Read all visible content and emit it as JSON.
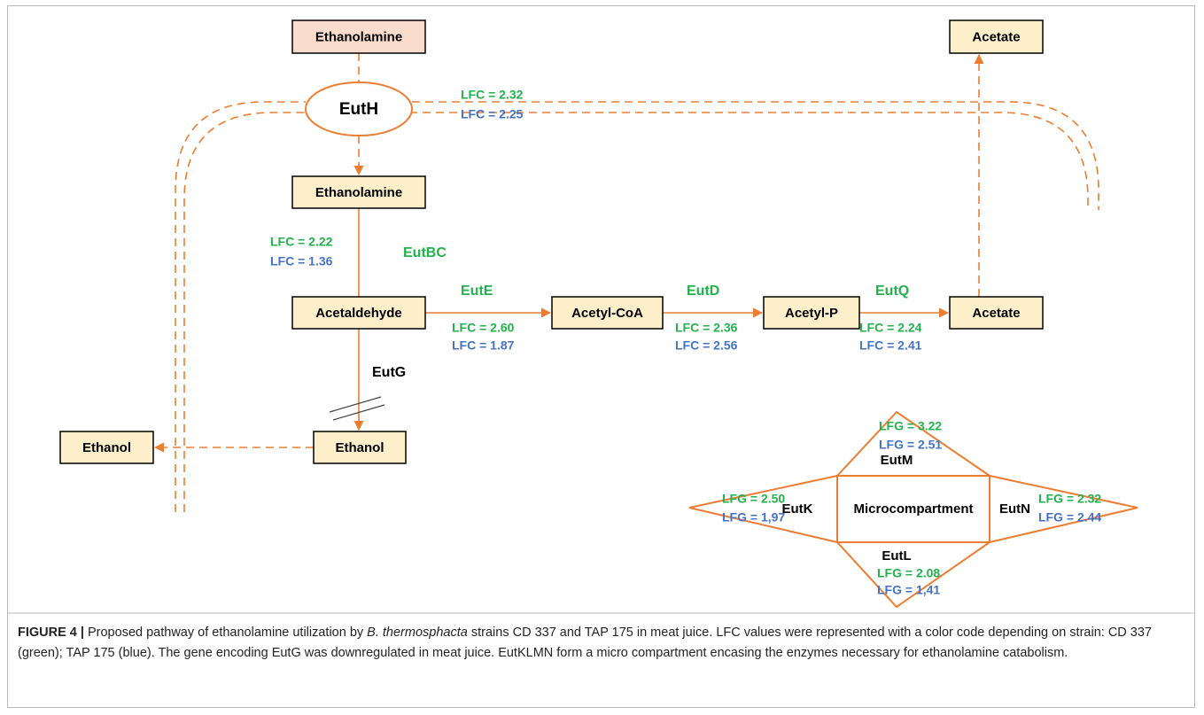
{
  "nodes": [
    "Ethanolamine",
    "Ethanolamine",
    "Acetaldehyde",
    "Acetyl-CoA",
    "Acetyl-P",
    "Acetate",
    "Acetate",
    "Ethanol",
    "Ethanol"
  ],
  "transporter": "EutH",
  "enzymes": [
    "EutBC",
    "EutE",
    "EutD",
    "EutQ",
    "EutG"
  ],
  "lfc": [
    {
      "green": "LFC = 2.32",
      "blue": "LFC = 2.25"
    },
    {
      "green": "LFC = 2.22",
      "blue": "LFC = 1.36"
    },
    {
      "green": "LFC = 2.60",
      "blue": "LFC = 1.87"
    },
    {
      "green": "LFC = 2.36",
      "blue": "LFC = 2.56"
    },
    {
      "green": "LFC = 2.24",
      "blue": "LFC = 2.41"
    }
  ],
  "microcompartment": {
    "label": "Microcompartment",
    "shells": [
      {
        "name": "EutM",
        "green": "LFG = 3.22",
        "blue": "LFG = 2.51"
      },
      {
        "name": "EutK",
        "green": "LFG = 2.50",
        "blue": "LFG = 1,97"
      },
      {
        "name": "EutN",
        "green": "LFG = 2.32",
        "blue": "LFG = 2.44"
      },
      {
        "name": "EutL",
        "green": "LFG = 2.08",
        "blue": "LFG = 1,41"
      }
    ]
  },
  "caption": {
    "label": "FIGURE 4 |",
    "text1": " Proposed pathway of ethanolamine utilization by ",
    "species": "B. thermosphacta",
    "text2": " strains CD 337 and TAP 175 in meat juice. LFC values were represented with a color code depending on strain: CD 337 (green); TAP 175 (blue). The gene encoding EutG was downregulated in meat juice. EutKLMN form a micro compartment encasing the enzymes necessary for ethanolamine catabolism."
  }
}
